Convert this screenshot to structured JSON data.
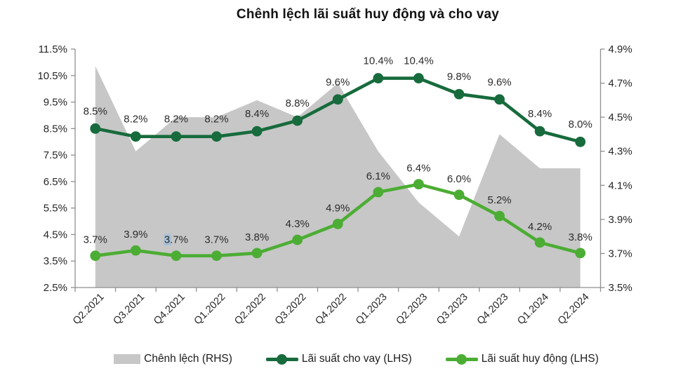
{
  "chart_data": {
    "type": "area+line combo",
    "title": "Chênh lệch lãi suất huy động và cho vay",
    "categories": [
      "Q2.2021",
      "Q3.2021",
      "Q4.2021",
      "Q1.2022",
      "Q2.2022",
      "Q3.2022",
      "Q4.2022",
      "Q1.2023",
      "Q2.2023",
      "Q3.2023",
      "Q4.2023",
      "Q1.2024",
      "Q2.2024"
    ],
    "series": [
      {
        "name": "Chênh lệch (RHS)",
        "type": "area",
        "axis": "right",
        "color": "#c7c7c7",
        "values": [
          4.8,
          4.3,
          4.5,
          4.5,
          4.6,
          4.5,
          4.7,
          4.3,
          4.0,
          3.8,
          4.4,
          4.2,
          4.2
        ]
      },
      {
        "name": "Lãi suất cho vay (LHS)",
        "type": "line",
        "axis": "left",
        "color": "#176b3c",
        "values": [
          8.5,
          8.2,
          8.2,
          8.2,
          8.4,
          8.8,
          9.6,
          10.4,
          10.4,
          9.8,
          9.6,
          8.4,
          8.0
        ],
        "labels": [
          "8.5%",
          "8.2%",
          "8.2%",
          "8.2%",
          "8.4%",
          "8.8%",
          "9.6%",
          "10.4%",
          "10.4%",
          "9.8%",
          "9.6%",
          "8.4%",
          "8.0%"
        ]
      },
      {
        "name": "Lãi suất huy động (LHS)",
        "type": "line",
        "axis": "left",
        "color": "#4cad34",
        "values": [
          3.7,
          3.9,
          3.7,
          3.7,
          3.8,
          4.3,
          4.9,
          6.1,
          6.4,
          6.0,
          5.2,
          4.2,
          3.8
        ],
        "labels": [
          "3.7%",
          "3.9%",
          "3.7%",
          "3.7%",
          "3.8%",
          "4.3%",
          "4.9%",
          "6.1%",
          "6.4%",
          "6.0%",
          "5.2%",
          "4.2%",
          "3.8%"
        ],
        "highlighted_label": {
          "index": 2,
          "chars": 1,
          "highlight_color": "#a9c0d6"
        }
      }
    ],
    "left_axis": {
      "min": 2.5,
      "max": 11.5,
      "ticks": [
        "11.5%",
        "10.5%",
        "9.5%",
        "8.5%",
        "7.5%",
        "6.5%",
        "5.5%",
        "4.5%",
        "3.5%",
        "2.5%"
      ]
    },
    "right_axis": {
      "min": 3.5,
      "max": 4.9,
      "ticks": [
        "4.9%",
        "4.7%",
        "4.5%",
        "4.3%",
        "4.1%",
        "3.9%",
        "3.7%",
        "3.5%"
      ]
    },
    "grid": false,
    "legend_position": "bottom"
  },
  "legend": {
    "items": [
      {
        "label": "Chênh lệch (RHS)",
        "color": "#c7c7c7",
        "swatch": "area"
      },
      {
        "label": "Lãi suất cho vay (LHS)",
        "color": "#176b3c",
        "swatch": "line-marker"
      },
      {
        "label": "Lãi suất huy động (LHS)",
        "color": "#4cad34",
        "swatch": "line-marker"
      }
    ]
  },
  "colors": {
    "lending_line": "#176b3c",
    "deposit_line": "#4cad34",
    "spread_area": "#c7c7c7",
    "axis_line": "#8f8f8f",
    "tick_text": "#262626",
    "data_label_text": "#2b2b2b"
  }
}
